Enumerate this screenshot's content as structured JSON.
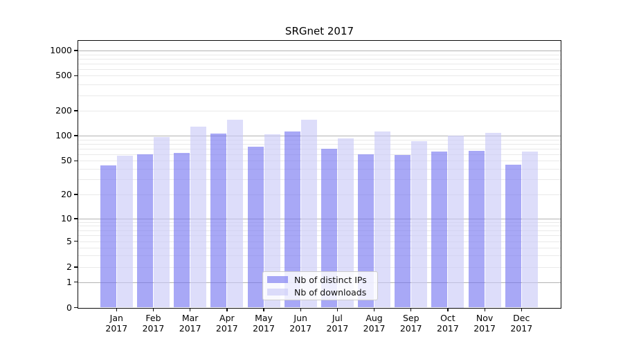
{
  "chart_data": {
    "type": "bar",
    "title": "SRGnet 2017",
    "yscale": "symlog",
    "grid": true,
    "ylim": [
      0,
      1300
    ],
    "ytick_labels": [
      "1000",
      "500",
      "200",
      "100",
      "50",
      "20",
      "10",
      "5",
      "2",
      "1",
      "0"
    ],
    "categories_months": [
      "Jan",
      "Feb",
      "Mar",
      "Apr",
      "May",
      "Jun",
      "Jul",
      "Aug",
      "Sep",
      "Oct",
      "Nov",
      "Dec"
    ],
    "categories_year": "2017",
    "series": [
      {
        "name": "Nb of distinct IPs",
        "color": "rgba(115,115,240,0.62)",
        "values": [
          44,
          60,
          62,
          105,
          74,
          113,
          69,
          60,
          59,
          64,
          66,
          45
        ]
      },
      {
        "name": "Nb of downloads",
        "color": "rgba(200,200,247,0.62)",
        "values": [
          58,
          97,
          128,
          157,
          103,
          156,
          92,
          112,
          86,
          100,
          109,
          65
        ]
      }
    ],
    "legend": {
      "position": "lower-center",
      "entries": [
        "Nb of distinct IPs",
        "Nb of downloads"
      ]
    }
  },
  "colors": {
    "bar_distinct_ips": "rgba(115,115,240,0.62)",
    "bar_downloads": "rgba(200,200,247,0.62)",
    "major_gridline": "#b2b2b2",
    "minor_gridline": "#e9e9e9",
    "axis": "#0a0a0a",
    "background": "#ffffff"
  }
}
